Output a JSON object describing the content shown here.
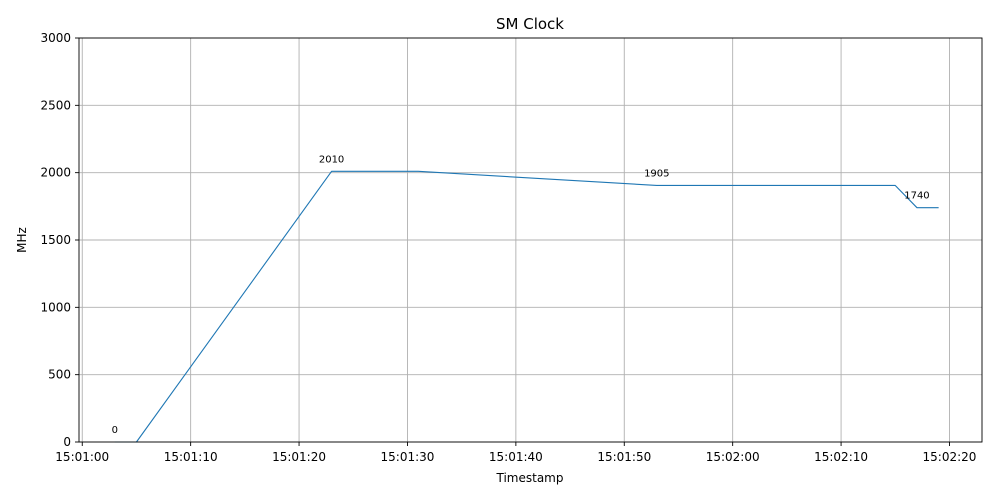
{
  "chart_data": {
    "type": "line",
    "title": "SM Clock",
    "xlabel": "Timestamp",
    "ylabel": "MHz",
    "ylim": [
      0,
      3000
    ],
    "xlim": [
      "15:00:59.7",
      "15:02:23.0"
    ],
    "xticks": [
      "15:01:00",
      "15:01:10",
      "15:01:20",
      "15:01:30",
      "15:01:40",
      "15:01:50",
      "15:02:00",
      "15:02:10",
      "15:02:20"
    ],
    "yticks": [
      0,
      500,
      1000,
      1500,
      2000,
      2500,
      3000
    ],
    "grid": true,
    "color": "#1f77b4",
    "series": [
      {
        "x": [
          "15:01:03",
          "15:01:05",
          "15:01:23",
          "15:01:31",
          "15:01:53",
          "15:02:15",
          "15:02:17",
          "15:02:19"
        ],
        "y": [
          0,
          0,
          2010,
          2010,
          1905,
          1905,
          1740,
          1740
        ]
      }
    ],
    "annotations": [
      {
        "x": "15:01:03",
        "y": 0,
        "text": "0"
      },
      {
        "x": "15:01:23",
        "y": 2010,
        "text": "2010"
      },
      {
        "x": "15:01:53",
        "y": 1905,
        "text": "1905"
      },
      {
        "x": "15:02:17",
        "y": 1740,
        "text": "1740"
      }
    ]
  }
}
